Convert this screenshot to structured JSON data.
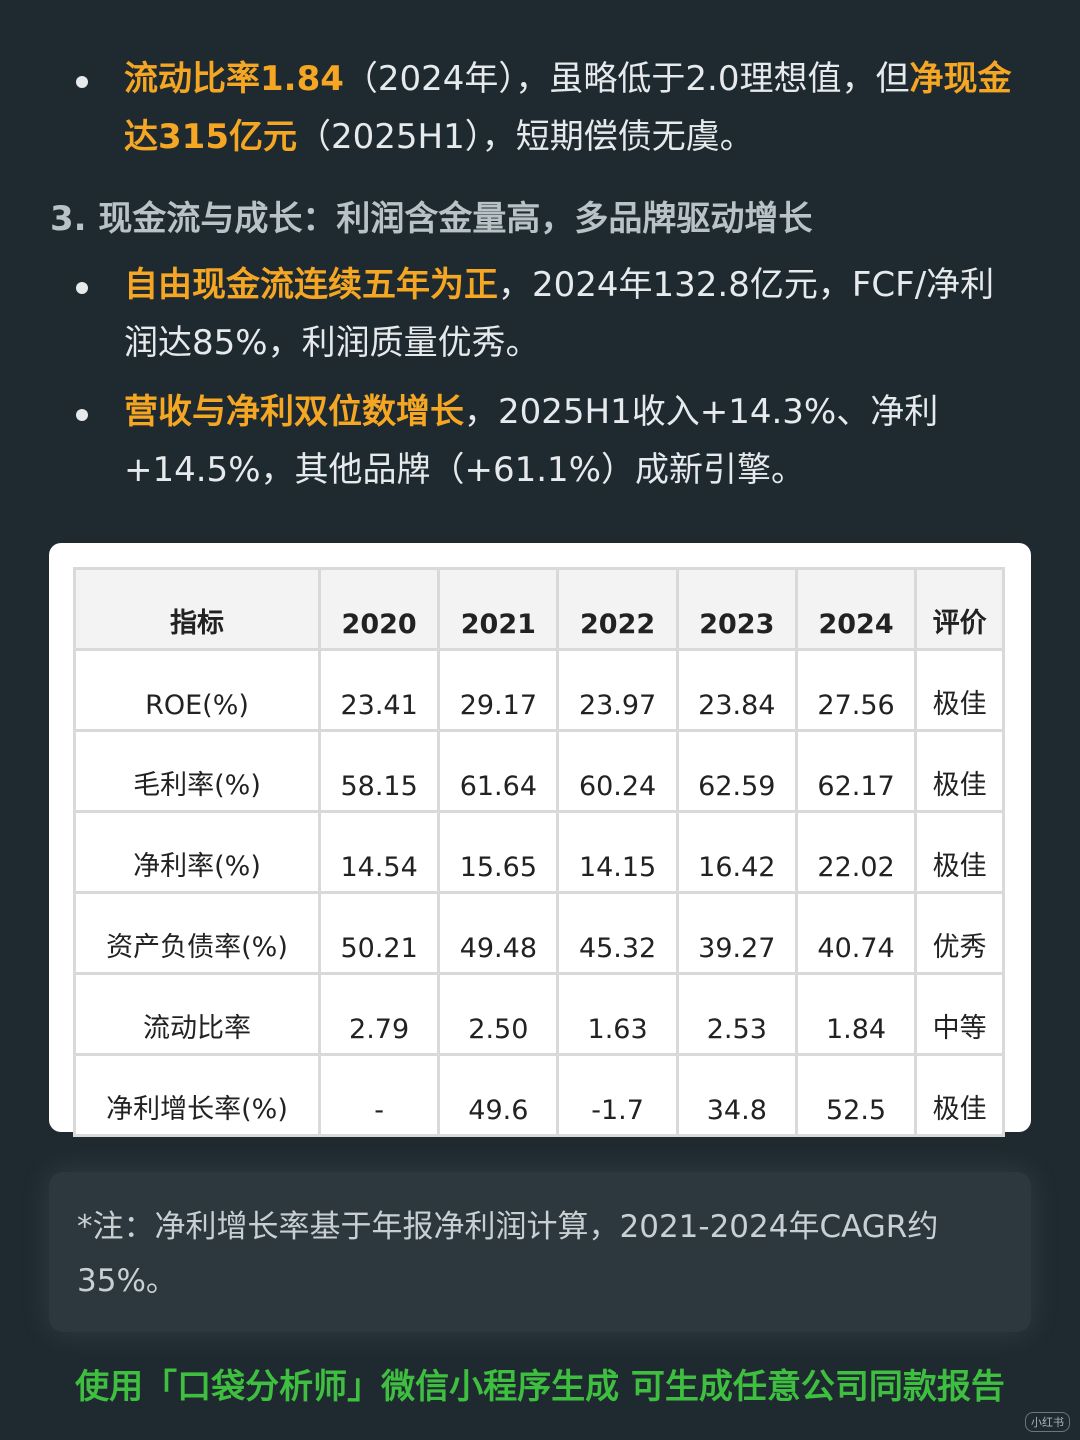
{
  "bullets_top": [
    {
      "hl1": "流动比率1.84",
      "t1": "（2024年），虽略低于2.0理想值，但",
      "hl2": "净现金达315亿元",
      "t2": "（2025H1），短期偿债无虞。"
    }
  ],
  "section_title": "3. 现金流与成长：利润含金量高，多品牌驱动增长",
  "bullets": [
    {
      "hl": "自由现金流连续五年为正",
      "text": "，2024年132.8亿元，FCF/净利润达85%，利润质量优秀。"
    },
    {
      "hl": "营收与净利双位数增长",
      "text": "，2025H1收入+14.3%、净利+14.5%，其他品牌（+61.1%）成新引擎。"
    }
  ],
  "table": {
    "headers": [
      "指标",
      "2020",
      "2021",
      "2022",
      "2023",
      "2024",
      "评价"
    ],
    "rows": [
      [
        "ROE(%)",
        "23.41",
        "29.17",
        "23.97",
        "23.84",
        "27.56",
        "极佳"
      ],
      [
        "毛利率(%)",
        "58.15",
        "61.64",
        "60.24",
        "62.59",
        "62.17",
        "极佳"
      ],
      [
        "净利率(%)",
        "14.54",
        "15.65",
        "14.15",
        "16.42",
        "22.02",
        "极佳"
      ],
      [
        "资产负债率(%)",
        "50.21",
        "49.48",
        "45.32",
        "39.27",
        "40.74",
        "优秀"
      ],
      [
        "流动比率",
        "2.79",
        "2.50",
        "1.63",
        "2.53",
        "1.84",
        "中等"
      ],
      [
        "净利增长率(%)",
        "-",
        "49.6",
        "-1.7",
        "34.8",
        "52.5",
        "极佳"
      ]
    ]
  },
  "note": "*注：净利增长率基于年报净利润计算，2021-2024年CAGR约35%。",
  "footer": "使用「口袋分析师」微信小程序生成 可生成任意公司同款报告",
  "watermark": "小红书"
}
